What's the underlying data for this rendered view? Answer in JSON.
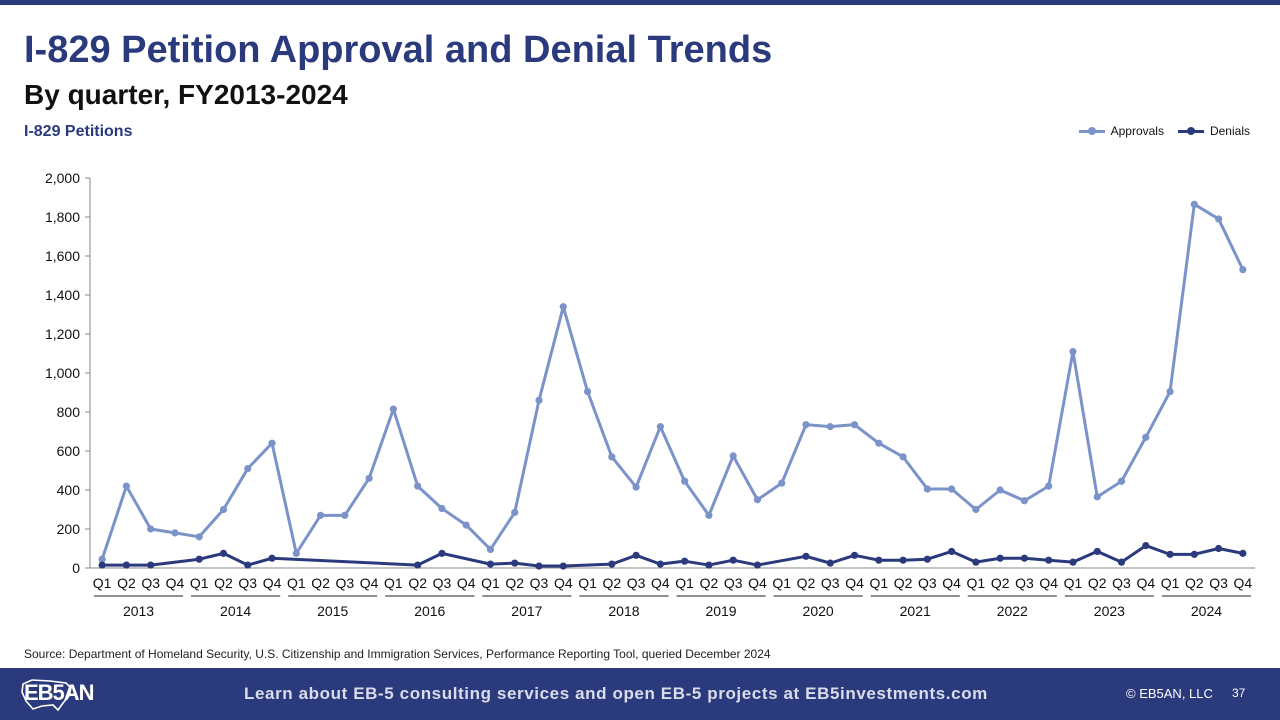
{
  "header": {
    "title": "I-829 Petition Approval and Denial Trends",
    "subtitle": "By quarter, FY2013-2024",
    "chart_label": "I-829 Petitions"
  },
  "colors": {
    "approvals": "#7b93c9",
    "denials": "#2a3a7c",
    "brand": "#2a3a7c"
  },
  "chart_data": {
    "type": "line",
    "title": "I-829 Petitions",
    "xlabel": "",
    "ylabel": "",
    "ylim": [
      0,
      2000
    ],
    "yticks": [
      0,
      200,
      400,
      600,
      800,
      1000,
      1200,
      1400,
      1600,
      1800,
      2000
    ],
    "ytick_labels": [
      "0",
      "200",
      "400",
      "600",
      "800",
      "1,000",
      "1,200",
      "1,400",
      "1,600",
      "1,800",
      "2,000"
    ],
    "quarter_labels": [
      "Q1",
      "Q2",
      "Q3",
      "Q4"
    ],
    "years": [
      "2013",
      "2014",
      "2015",
      "2016",
      "2017",
      "2018",
      "2019",
      "2020",
      "2021",
      "2022",
      "2023",
      "2024"
    ],
    "legend_position": "top-right",
    "grid": false,
    "series": [
      {
        "name": "Approvals",
        "color": "#7b93c9",
        "values": [
          45,
          420,
          200,
          180,
          160,
          300,
          510,
          640,
          75,
          270,
          270,
          460,
          815,
          420,
          305,
          220,
          95,
          285,
          860,
          1340,
          905,
          570,
          415,
          725,
          445,
          270,
          575,
          350,
          435,
          735,
          725,
          735,
          640,
          570,
          405,
          405,
          300,
          400,
          345,
          420,
          1110,
          365,
          445,
          670,
          905,
          1865,
          1790,
          1530
        ]
      },
      {
        "name": "Denials",
        "color": "#2a3a7c",
        "values": [
          15,
          15,
          15,
          null,
          45,
          75,
          15,
          50,
          null,
          null,
          null,
          null,
          null,
          15,
          75,
          null,
          20,
          25,
          10,
          10,
          null,
          20,
          65,
          20,
          35,
          15,
          40,
          15,
          null,
          60,
          25,
          65,
          40,
          40,
          45,
          85,
          30,
          50,
          50,
          40,
          30,
          85,
          30,
          115,
          70,
          70,
          100,
          75
        ]
      }
    ]
  },
  "source": "Source: Department of Homeland Security, U.S. Citizenship and Immigration Services, Performance Reporting Tool, queried December 2024",
  "footer": {
    "logo": "EB5AN",
    "text": "Learn about EB-5 consulting services and open EB-5 projects at EB5investments.com",
    "copyright": "© EB5AN, LLC",
    "page": "37"
  }
}
